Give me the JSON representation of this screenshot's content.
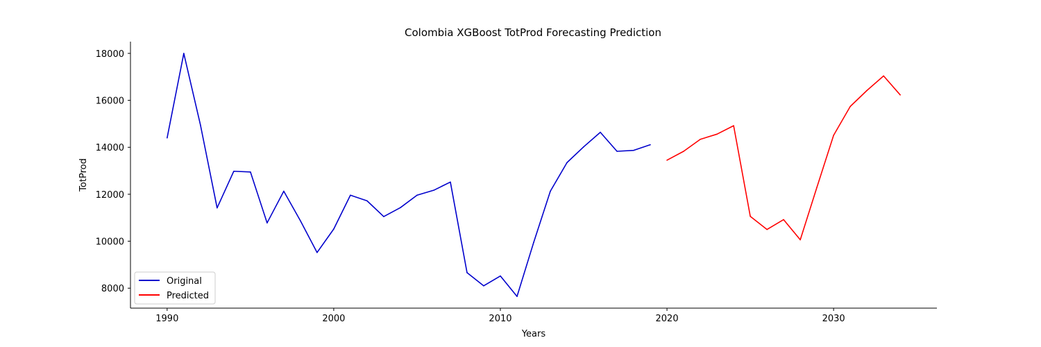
{
  "chart_data": {
    "type": "line",
    "title": "Colombia XGBoost TotProd Forecasting Prediction",
    "xlabel": "Years",
    "ylabel": "TotProd",
    "xlim": [
      1987.8,
      2036.2
    ],
    "ylim": [
      7150,
      18500
    ],
    "xticks": [
      1990,
      2000,
      2010,
      2020,
      2030
    ],
    "yticks": [
      8000,
      10000,
      12000,
      14000,
      16000,
      18000
    ],
    "grid": false,
    "legend_position": "lower-left",
    "series": [
      {
        "name": "Original",
        "color": "#0000cc",
        "x": [
          1990,
          1991,
          1992,
          1993,
          1994,
          1995,
          1996,
          1997,
          1998,
          1999,
          2000,
          2001,
          2002,
          2003,
          2004,
          2005,
          2006,
          2007,
          2008,
          2009,
          2010,
          2011,
          2012,
          2013,
          2014,
          2015,
          2016,
          2017,
          2018,
          2019
        ],
        "values": [
          14400,
          18000,
          14950,
          11420,
          12980,
          12950,
          10780,
          12130,
          10870,
          9520,
          10520,
          11960,
          11720,
          11050,
          11430,
          11960,
          12170,
          12520,
          8660,
          8100,
          8520,
          7650,
          9950,
          12130,
          13350,
          14020,
          14640,
          13830,
          13870,
          14110
        ]
      },
      {
        "name": "Predicted",
        "color": "#ff0000",
        "x": [
          2020,
          2021,
          2022,
          2023,
          2024,
          2025,
          2026,
          2027,
          2028,
          2029,
          2030,
          2031,
          2032,
          2033,
          2034
        ],
        "values": [
          13450,
          13830,
          14340,
          14560,
          14920,
          11060,
          10500,
          10920,
          10060,
          12300,
          14510,
          15740,
          16420,
          17040,
          16230
        ]
      }
    ]
  }
}
